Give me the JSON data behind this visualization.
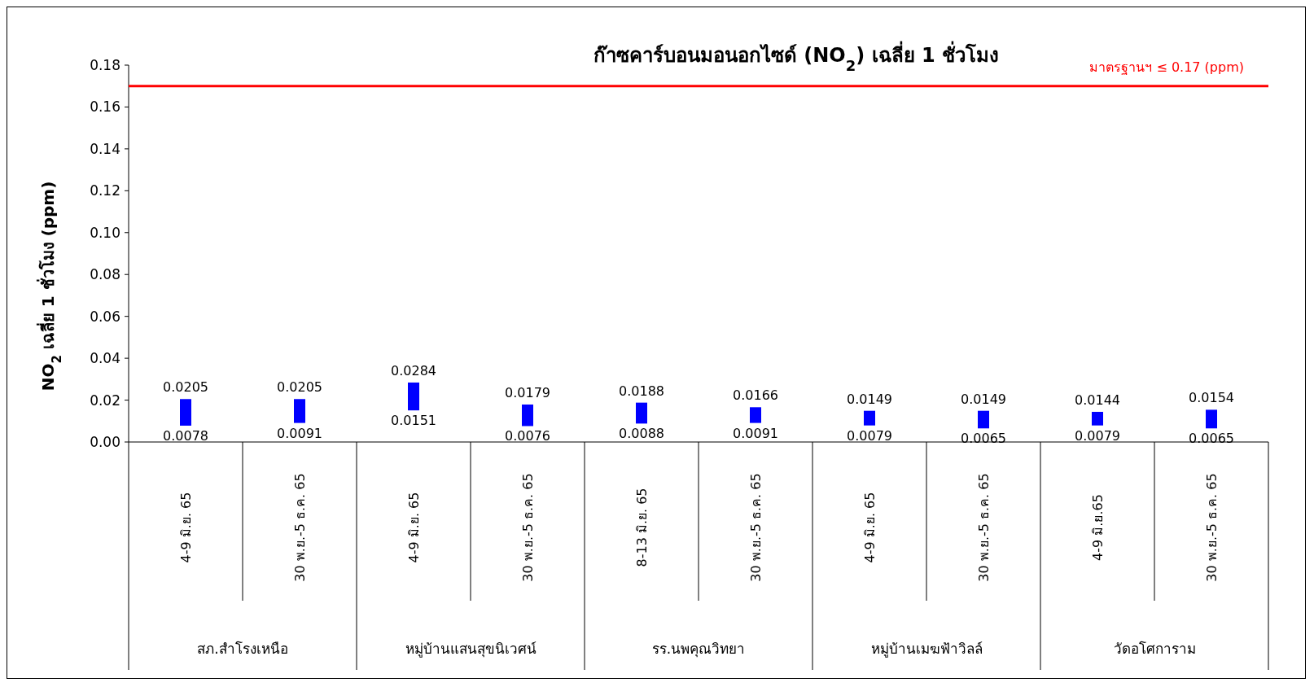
{
  "chart_data": {
    "type": "bar",
    "title": "ก๊าซคาร์บอนมอนอกไซด์ (NO$_{2}$) เฉลี่ย 1 ชั่วโมง",
    "ylabel": "NO$_{2}$ เฉลี่ย 1 ชั่วโมง (ppm)",
    "categories": [
      "4-9 มิ.ย. 65",
      "30 พ.ย.-5 ธ.ค. 65",
      "4-9 มิ.ย. 65",
      "30 พ.ย.-5 ธ.ค. 65",
      "8-13 มิ.ย. 65",
      "30 พ.ย.-5 ธ.ค. 65",
      "4-9 มิ.ย. 65",
      "30 พ.ย.-5 ธ.ค. 65",
      "4-9 มิ.ย.65",
      "30 พ.ย.-5 ธ.ค. 65"
    ],
    "base": [
      0.0078,
      0.0091,
      0.0151,
      0.0076,
      0.0088,
      0.0091,
      0.0079,
      0.0065,
      0.0079,
      0.0065
    ],
    "values": [
      0.0127,
      0.0114,
      0.0133,
      0.0103,
      0.01,
      0.0075,
      0.007,
      0.0084,
      0.0065,
      0.0089
    ],
    "value_labels": [
      "0.0205",
      "0.0205",
      "0.0284",
      "0.0179",
      "0.0188",
      "0.0166",
      "0.0149",
      "0.0149",
      "0.0144",
      "0.0154"
    ],
    "color": "#0000ff",
    "ylim": [
      0,
      0.18
    ],
    "yticks": [
      {
        "value": 0,
        "label": "0.00"
      },
      {
        "value": 0.02,
        "label": "0.02"
      },
      {
        "value": 0.04,
        "label": "0.04"
      },
      {
        "value": 0.06,
        "label": "0.06"
      },
      {
        "value": 0.08,
        "label": "0.08"
      },
      {
        "value": 0.1,
        "label": "0.10"
      },
      {
        "value": 0.12,
        "label": "0.12"
      },
      {
        "value": 0.14,
        "label": "0.14"
      },
      {
        "value": 0.16,
        "label": "0.16"
      },
      {
        "value": 0.18,
        "label": "0.18"
      }
    ],
    "ref_lines": [
      {
        "axis": "y",
        "value": 0.17,
        "label": "มาตรฐานฯ ≤ 0.17 (ppm)",
        "color": "#ff0000"
      }
    ],
    "annotations": [
      "0.0078",
      "0.0091",
      "0.0151",
      "0.0076",
      "0.0088",
      "0.0091",
      "0.0079",
      "0.0065",
      "0.0079",
      "0.0065",
      "สภ.สำโรงเหนือ",
      "หมู่บ้านแสนสุขนิเวศน์",
      "รร.นพคุณวิทยา",
      "หมู่บ้านเมฆฟ้าวิลล์",
      "วัดอโศการาม"
    ]
  }
}
